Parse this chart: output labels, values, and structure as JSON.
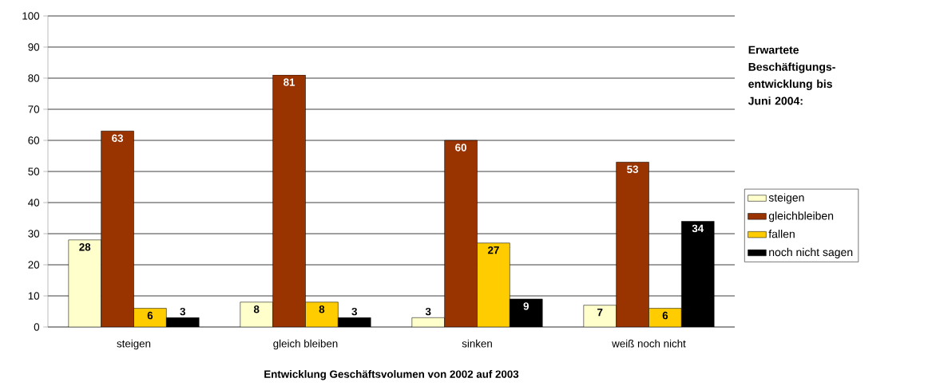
{
  "chart_data": {
    "type": "bar",
    "xlabel": "Entwicklung Geschäftsvolumen von 2002 auf 2003",
    "legend_title": "Erwartete Beschäftigungs-entwicklung bis Juni 2004:",
    "categories": [
      "steigen",
      "gleich bleiben",
      "sinken",
      "weiß noch nicht"
    ],
    "series": [
      {
        "name": "steigen",
        "color": "#ffffcc",
        "values": [
          28,
          8,
          3,
          7
        ]
      },
      {
        "name": "gleichbleiben",
        "color": "#993300",
        "values": [
          63,
          81,
          60,
          53
        ]
      },
      {
        "name": "fallen",
        "color": "#ffcc00",
        "values": [
          6,
          8,
          27,
          6
        ]
      },
      {
        "name": "noch nicht sagen",
        "color": "#000000",
        "values": [
          3,
          3,
          9,
          34
        ]
      }
    ],
    "ylim": [
      0,
      100
    ],
    "yticks": [
      0,
      10,
      20,
      30,
      40,
      50,
      60,
      70,
      80,
      90,
      100
    ],
    "grid": "y",
    "legend": "right",
    "data_labels": true
  }
}
